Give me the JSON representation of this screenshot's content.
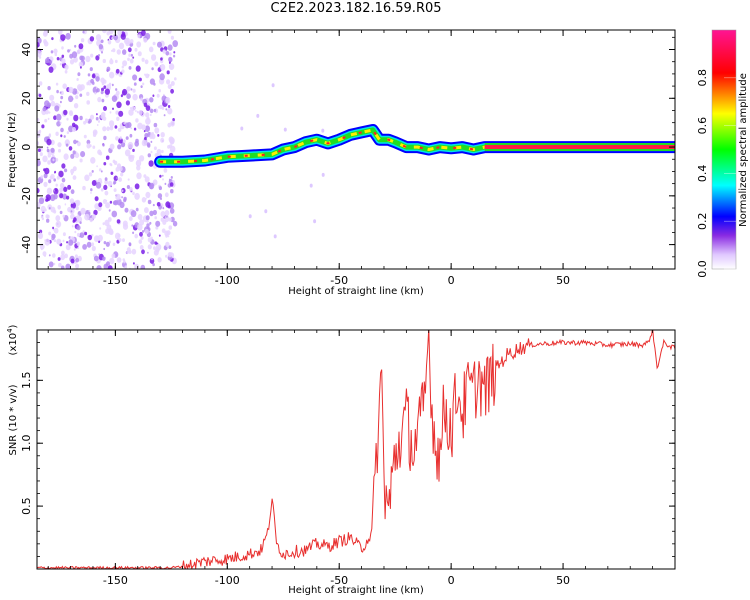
{
  "title": "C2E2.2023.182.16.59.R05",
  "chart_data": [
    {
      "type": "heatmap",
      "xlabel": "Height of straight line (km)",
      "ylabel": "Frequency (Hz)",
      "xlim": [
        -185,
        100
      ],
      "ylim": [
        -50,
        48
      ],
      "xticks": [
        -150,
        -100,
        -50,
        0,
        50
      ],
      "yticks": [
        -40,
        -20,
        0,
        20,
        40
      ],
      "colorbar": {
        "label": "Normalized spectral amplitude",
        "range": [
          0.0,
          1.0
        ],
        "ticks": [
          "0.0",
          "0.2",
          "0.4",
          "0.6",
          "0.8"
        ],
        "colors": [
          "#ffffff",
          "#8a2be2",
          "#0000ff",
          "#00ffff",
          "#00ff00",
          "#ffff00",
          "#ff0000",
          "#ff1493"
        ]
      },
      "noise_region": {
        "x_from": -185,
        "x_to": -123
      },
      "ridge": {
        "x": [
          -130,
          -120,
          -110,
          -100,
          -90,
          -80,
          -75,
          -70,
          -65,
          -60,
          -55,
          -50,
          -45,
          -40,
          -35,
          -32,
          -28,
          -25,
          -20,
          -15,
          -10,
          -5,
          0,
          5,
          10,
          15,
          100
        ],
        "y": [
          -6,
          -6,
          -5.5,
          -4,
          -3.5,
          -3,
          -1,
          0,
          2,
          3,
          1.5,
          3,
          5,
          6,
          7,
          3,
          3,
          2,
          0,
          0,
          -1,
          0,
          -0.5,
          0,
          -1,
          0,
          0
        ]
      }
    },
    {
      "type": "line",
      "xlabel": "Height of straight line (km)",
      "ylabel": "SNR (10 * v/v)",
      "multiplier": "(x10",
      "multiplier_exp": "4",
      "xlim": [
        -185,
        100
      ],
      "ylim": [
        0,
        1.9
      ],
      "xticks": [
        -150,
        -100,
        -50,
        0,
        50
      ],
      "yticks": [
        0.5,
        1.0,
        1.5
      ],
      "color": "#e8302f",
      "series": [
        {
          "x": [
            -185,
            -150,
            -125,
            -120,
            -115,
            -110,
            -100,
            -95,
            -90,
            -85,
            -82,
            -80,
            -78,
            -75,
            -70,
            -65,
            -60,
            -55,
            -50,
            -45,
            -40,
            -35,
            -33,
            -31,
            -30,
            -28,
            -25,
            -22,
            -20,
            -17,
            -15,
            -12,
            -10,
            -8,
            -5,
            -3,
            0,
            3,
            5,
            8,
            10,
            12,
            15,
            20,
            25,
            30,
            35,
            40,
            50,
            60,
            70,
            80,
            85,
            88,
            90,
            92,
            95,
            100
          ],
          "y": [
            0.01,
            0.01,
            0.01,
            0.02,
            0.04,
            0.06,
            0.08,
            0.1,
            0.12,
            0.15,
            0.28,
            0.56,
            0.2,
            0.12,
            0.14,
            0.15,
            0.2,
            0.18,
            0.22,
            0.25,
            0.16,
            0.3,
            1.03,
            1.52,
            0.7,
            0.45,
            0.9,
            1.08,
            1.2,
            0.95,
            1.05,
            1.3,
            1.85,
            1.1,
            0.9,
            1.3,
            1.1,
            1.45,
            1.25,
            1.45,
            1.38,
            1.55,
            1.4,
            1.6,
            1.7,
            1.75,
            1.78,
            1.79,
            1.8,
            1.8,
            1.78,
            1.79,
            1.78,
            1.8,
            1.9,
            1.6,
            1.8,
            1.75
          ]
        }
      ]
    }
  ]
}
